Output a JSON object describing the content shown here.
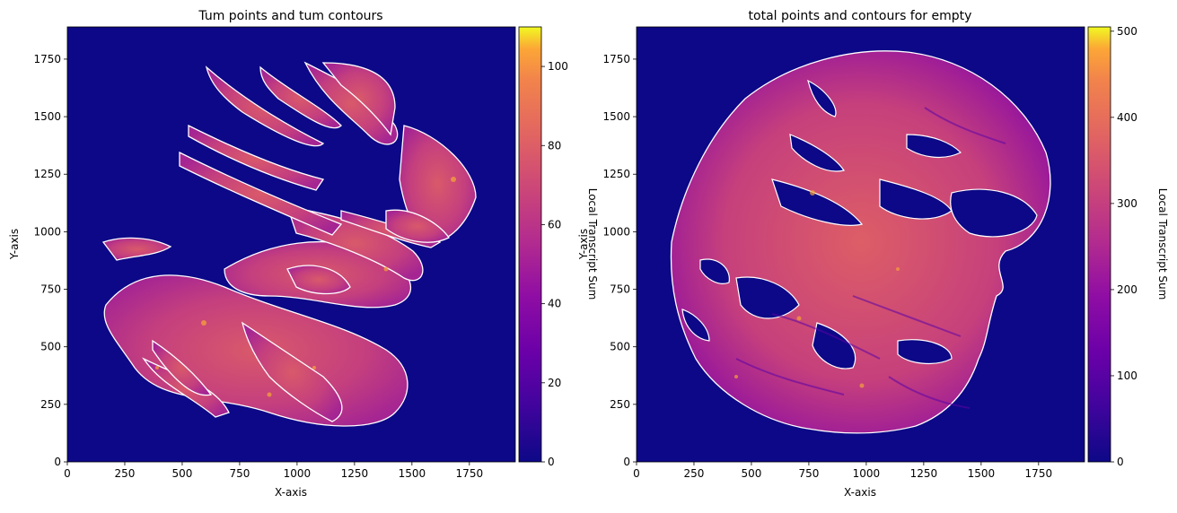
{
  "chart_data": [
    {
      "type": "heatmap",
      "title": "Tum points and tum contours",
      "xlabel": "X-axis",
      "ylabel": "Y-axis",
      "xlim": [
        0,
        1950
      ],
      "ylim": [
        0,
        1890
      ],
      "xticks": [
        0,
        250,
        500,
        750,
        1000,
        1250,
        1500,
        1750
      ],
      "yticks": [
        0,
        250,
        500,
        750,
        1000,
        1250,
        1500,
        1750
      ],
      "colorbar": {
        "label": "Local Transcript Sum",
        "range": [
          0,
          110
        ],
        "ticks": [
          0,
          20,
          40,
          60,
          80,
          100
        ]
      },
      "description_values": {
        "background_level": 3,
        "region_level": 55,
        "contour_color": "#ffffff"
      }
    },
    {
      "type": "heatmap",
      "title": "total points and contours for empty",
      "xlabel": "X-axis",
      "ylabel": "Y-axis",
      "xlim": [
        0,
        1950
      ],
      "ylim": [
        0,
        1890
      ],
      "xticks": [
        0,
        250,
        500,
        750,
        1000,
        1250,
        1500,
        1750
      ],
      "yticks": [
        0,
        250,
        500,
        750,
        1000,
        1250,
        1500,
        1750
      ],
      "colorbar": {
        "label": "Local Transcript Sum",
        "range": [
          0,
          505
        ],
        "ticks": [
          0,
          100,
          200,
          300,
          400,
          500
        ]
      },
      "description_values": {
        "background_level": 15,
        "region_level": 230,
        "contour_color": "#ffffff"
      }
    }
  ],
  "colors": {
    "plasma_low": "#0d0887",
    "plasma_mid": "#cc4778",
    "plasma_high": "#f0f921",
    "contour": "#ffffff"
  }
}
